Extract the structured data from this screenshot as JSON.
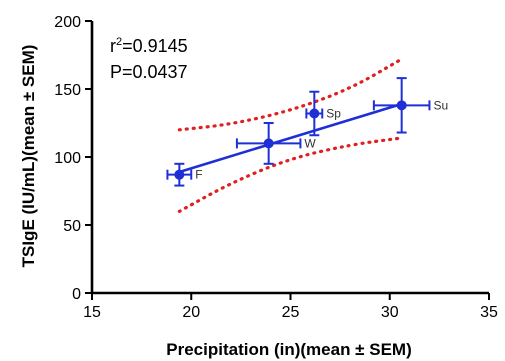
{
  "chart_data": {
    "type": "scatter",
    "xlabel": "Precipitation (in)(mean ± SEM)",
    "ylabel": "TSIgE (IU/mL)(mean ± SEM)",
    "xlim": [
      15,
      35
    ],
    "ylim": [
      0,
      200
    ],
    "x_ticks": [
      "15",
      "20",
      "25",
      "30",
      "35"
    ],
    "y_ticks": [
      "0",
      "50",
      "100",
      "150",
      "200"
    ],
    "grid": false,
    "annotations": {
      "r2_prefix": "r",
      "r2_exp": "2",
      "r2_value": "=0.9145",
      "p_text": "P=0.0437"
    },
    "series": [
      {
        "type": "points",
        "color": "#1f2fd6",
        "points": [
          {
            "label": "F",
            "x": 19.4,
            "y": 87,
            "xerr": 0.6,
            "yerr": 8
          },
          {
            "label": "W",
            "x": 23.9,
            "y": 110,
            "xerr": 1.6,
            "yerr": 15
          },
          {
            "label": "Sp",
            "x": 26.2,
            "y": 132,
            "xerr": 0.4,
            "yerr": 16
          },
          {
            "label": "Su",
            "x": 30.6,
            "y": 138,
            "xerr": 1.4,
            "yerr": 20
          }
        ]
      },
      {
        "type": "regression",
        "color": "#1f2fd6",
        "x": [
          19.4,
          30.6
        ],
        "y": [
          89,
          139
        ]
      },
      {
        "type": "confidence-band",
        "color": "#e02020",
        "upper": {
          "x": [
            19.4,
            22,
            25,
            28,
            30.6
          ],
          "y": [
            120,
            124,
            134,
            150,
            172
          ]
        },
        "lower": {
          "x": [
            19.4,
            22,
            25,
            28,
            30.6
          ],
          "y": [
            60,
            81,
            99,
            109,
            114
          ]
        }
      }
    ]
  }
}
